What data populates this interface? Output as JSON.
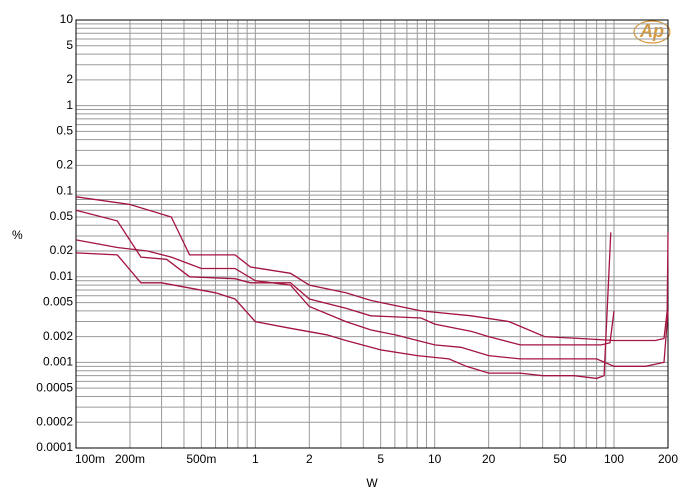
{
  "chart_data": {
    "type": "line",
    "logo": "Ap",
    "ylabel": "%",
    "xlabel": "W",
    "xscale": "log",
    "yscale": "log",
    "grid": true,
    "xlim": [
      0.1,
      200
    ],
    "ylim": [
      0.0001,
      10
    ],
    "xticks": [
      {
        "value": 0.1,
        "label": "100m"
      },
      {
        "value": 0.2,
        "label": "200m"
      },
      {
        "value": 0.5,
        "label": "500m"
      },
      1,
      2,
      5,
      10,
      20,
      50,
      100,
      200
    ],
    "yticks": [
      10,
      5,
      2,
      1,
      0.5,
      0.2,
      0.1,
      0.05,
      0.02,
      0.01,
      0.005,
      0.002,
      0.001,
      0.0005,
      0.0002,
      0.0001
    ],
    "xminor": [
      0.3,
      0.4,
      0.6,
      0.7,
      0.8,
      0.9,
      3,
      4,
      6,
      7,
      8,
      9,
      30,
      40,
      60,
      70,
      80,
      90
    ],
    "yminor": [
      9,
      8,
      7,
      6,
      4,
      3,
      0.9,
      0.8,
      0.7,
      0.6,
      0.4,
      0.3,
      0.09,
      0.08,
      0.07,
      0.06,
      0.04,
      0.03,
      0.009,
      0.008,
      0.007,
      0.006,
      0.004,
      0.003,
      0.0009,
      0.0008,
      0.0007,
      0.0006,
      0.0004,
      0.0003
    ],
    "series": [
      {
        "color": "#a3143f",
        "x": [
          0.1,
          0.2,
          0.34,
          0.43,
          0.77,
          0.94,
          1.57,
          2,
          3.2,
          4.4,
          8.4,
          16,
          26,
          41,
          65,
          100,
          170,
          190,
          198,
          200
        ],
        "values": [
          0.086,
          0.07,
          0.05,
          0.018,
          0.018,
          0.013,
          0.011,
          0.008,
          0.0065,
          0.0053,
          0.004,
          0.0035,
          0.003,
          0.002,
          0.0019,
          0.0018,
          0.0018,
          0.0019,
          0.004,
          0.033
        ]
      },
      {
        "color": "#a3143f",
        "x": [
          0.1,
          0.17,
          0.23,
          0.32,
          0.43,
          0.77,
          0.94,
          1.57,
          2,
          3.2,
          4.4,
          8.4,
          10,
          16,
          20,
          30,
          50,
          85,
          95,
          100
        ],
        "values": [
          0.06,
          0.045,
          0.017,
          0.016,
          0.01,
          0.0095,
          0.0085,
          0.0085,
          0.0055,
          0.0043,
          0.0035,
          0.0033,
          0.0028,
          0.0023,
          0.002,
          0.0016,
          0.0016,
          0.0016,
          0.0017,
          0.004
        ]
      },
      {
        "color": "#a3143f",
        "x": [
          0.1,
          0.17,
          0.25,
          0.34,
          0.5,
          0.77,
          1,
          1.57,
          2,
          3.2,
          4.4,
          6,
          10,
          14,
          20,
          30,
          50,
          80,
          100,
          150,
          190,
          200
        ],
        "values": [
          0.027,
          0.022,
          0.02,
          0.017,
          0.0125,
          0.0125,
          0.009,
          0.008,
          0.0045,
          0.003,
          0.0024,
          0.0021,
          0.0016,
          0.0015,
          0.0012,
          0.0011,
          0.0011,
          0.0011,
          0.0009,
          0.0009,
          0.001,
          0.004
        ]
      },
      {
        "color": "#a3143f",
        "x": [
          0.1,
          0.17,
          0.23,
          0.3,
          0.6,
          0.77,
          1,
          1.57,
          2.5,
          3.2,
          5,
          8,
          12,
          15,
          20,
          30,
          40,
          60,
          80,
          88,
          96
        ],
        "values": [
          0.019,
          0.018,
          0.0085,
          0.0085,
          0.0065,
          0.0055,
          0.003,
          0.0025,
          0.0021,
          0.0018,
          0.0014,
          0.0012,
          0.0011,
          0.0009,
          0.00075,
          0.00075,
          0.0007,
          0.0007,
          0.00065,
          0.0007,
          0.033
        ]
      }
    ]
  }
}
